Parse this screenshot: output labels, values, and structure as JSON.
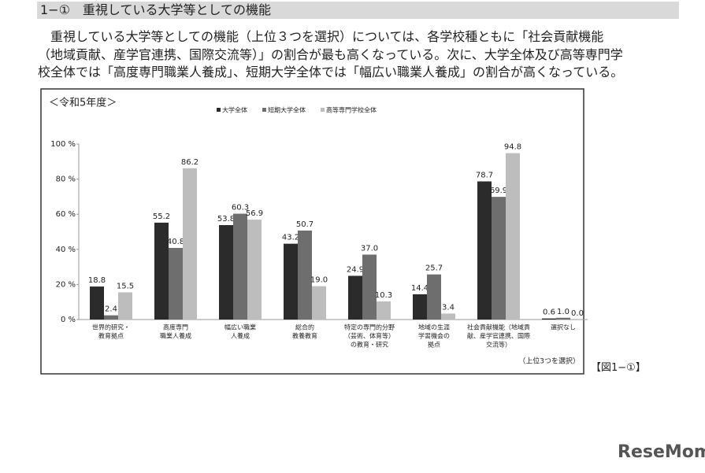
{
  "header": {
    "title": "1−①　重視している大学等としての機能"
  },
  "paragraph": [
    "重視している大学等としての機能（上位３つを選択）については、各学校種ともに「社会貢献機能",
    "（地域貢献、産学官連携、国際交流等）」の割合が最も高くなっている。次に、大学全体及び高等専門学",
    "校全体では「高度専門職業人養成」、短期大学全体では「幅広い職業人養成」の割合が高くなっている。"
  ],
  "chart_data": {
    "type": "bar",
    "subtitle": "＜令和5年度＞",
    "annotation": "（上位3つを選択）",
    "categories": [
      [
        "世界的研究・",
        "教育拠点"
      ],
      [
        "高度専門",
        "職業人養成"
      ],
      [
        "幅広い職業",
        "人養成"
      ],
      [
        "総合的",
        "教養教育"
      ],
      [
        "特定の専門的分野",
        "（芸術、体育等）",
        "の教育・研究"
      ],
      [
        "地域の生涯",
        "学習機会の",
        "拠点"
      ],
      [
        "社会貢献機能（地域貢",
        "献、産学官連携、国際",
        "交流等）"
      ],
      [
        "選択なし"
      ]
    ],
    "series": [
      {
        "name": "大学全体",
        "color": "#2b2b2b",
        "values": [
          18.8,
          55.2,
          53.8,
          43.2,
          24.9,
          14.4,
          78.7,
          0.6
        ],
        "value_labels": [
          "18.8",
          "55.2",
          "53.8",
          "43.2",
          "24.9",
          "14.4",
          "78.7",
          "0.6"
        ]
      },
      {
        "name": "短期大学全体",
        "color": "#6e6e6e",
        "values": [
          2.4,
          40.8,
          60.3,
          50.7,
          37.0,
          25.7,
          69.9,
          1.0
        ],
        "value_labels": [
          "2.4",
          "40.8",
          "60.3",
          "50.7",
          "37.0",
          "25.7",
          "69.9",
          "1.0"
        ]
      },
      {
        "name": "高等専門学校全体",
        "color": "#bdbdbd",
        "values": [
          15.5,
          86.2,
          56.9,
          19.0,
          10.3,
          3.4,
          94.8,
          0.0
        ],
        "value_labels": [
          "15.5",
          "86.2",
          "56.9",
          "19.0",
          "10.3",
          "3.4",
          "94.8",
          "0.0"
        ]
      }
    ],
    "ylim": [
      0,
      100
    ],
    "yticks": [
      {
        "value": 0,
        "label": "0 %"
      },
      {
        "value": 20,
        "label": "20 %"
      },
      {
        "value": 40,
        "label": "40 %"
      },
      {
        "value": 60,
        "label": "60 %"
      },
      {
        "value": 80,
        "label": "80 %"
      },
      {
        "value": 100,
        "label": "100 %"
      }
    ],
    "grid": false
  },
  "figure_label": "【図1−①】",
  "watermark": "ReseMom"
}
